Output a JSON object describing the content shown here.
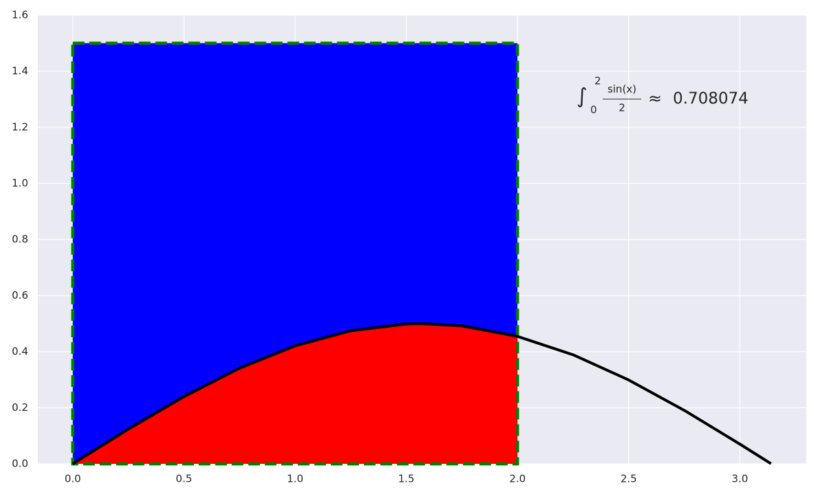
{
  "chart_data": {
    "type": "line",
    "x": [
      0,
      0.25,
      0.5,
      0.75,
      1.0,
      1.25,
      1.5,
      1.57,
      1.75,
      2.0,
      2.25,
      2.5,
      2.75,
      3.0,
      3.14
    ],
    "series": [
      {
        "color": "#000000",
        "values": [
          0,
          0.1237,
          0.2397,
          0.3408,
          0.4207,
          0.4745,
          0.4987,
          0.5,
          0.492,
          0.4546,
          0.389,
          0.2992,
          0.1909,
          0.0706,
          0.0008
        ]
      }
    ],
    "fill_under": {
      "x_range": [
        0,
        2
      ],
      "color": "#ff0000"
    },
    "rectangle": {
      "x": [
        0,
        2
      ],
      "y": [
        0,
        1.5
      ],
      "color": "#0000ff",
      "edge_color": "#008000"
    },
    "annotation": {
      "integral": "∫",
      "lower": "0",
      "upper": "2",
      "numerator": "sin(x)",
      "denominator": "2",
      "approx": "≈",
      "value": "0.708074"
    },
    "xlim": [
      -0.157,
      3.299
    ],
    "ylim": [
      0,
      1.6
    ],
    "xticks": [
      {
        "value": 0,
        "label": "0.0"
      },
      0.5,
      {
        "value": 1,
        "label": "1.0"
      },
      1.5,
      {
        "value": 2,
        "label": "2.0"
      },
      2.5,
      {
        "value": 3,
        "label": "3.0"
      }
    ],
    "yticks": [
      {
        "value": 0,
        "label": "0.0"
      },
      0.2,
      0.4,
      0.6,
      0.8,
      {
        "value": 1,
        "label": "1.0"
      },
      1.2,
      1.4,
      1.6
    ],
    "grid": true
  }
}
